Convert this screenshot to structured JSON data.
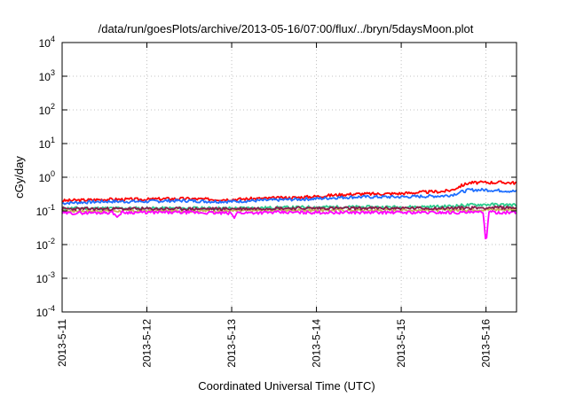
{
  "chart_data": {
    "type": "line",
    "title": "/data/run/goesPlots/archive/2013-05-16/07:00/flux/../bryn/5daysMoon.plot",
    "xlabel": "Coordinated Universal Time (UTC)",
    "ylabel": "cGy/day",
    "yscale": "log",
    "ylim": [
      0.0001,
      10000
    ],
    "xlim": [
      0,
      5.36
    ],
    "grid": true,
    "y_ticks": [
      {
        "value": 0.0001,
        "base": "10",
        "exp": "-4"
      },
      {
        "value": 0.001,
        "base": "10",
        "exp": "-3"
      },
      {
        "value": 0.01,
        "base": "10",
        "exp": "-2"
      },
      {
        "value": 0.1,
        "base": "10",
        "exp": "-1"
      },
      {
        "value": 1,
        "base": "10",
        "exp": "0"
      },
      {
        "value": 10,
        "base": "10",
        "exp": "1"
      },
      {
        "value": 100,
        "base": "10",
        "exp": "2"
      },
      {
        "value": 1000,
        "base": "10",
        "exp": "3"
      },
      {
        "value": 10000,
        "base": "10",
        "exp": "4"
      }
    ],
    "x_ticks": [
      {
        "value": 0,
        "label": "2013-5-11"
      },
      {
        "value": 1,
        "label": "2013-5-12"
      },
      {
        "value": 2,
        "label": "2013-5-13"
      },
      {
        "value": 3,
        "label": "2013-5-14"
      },
      {
        "value": 4,
        "label": "2013-5-15"
      },
      {
        "value": 5,
        "label": "2013-5-16"
      }
    ],
    "series": [
      {
        "color": "#ff0000",
        "points": [
          [
            0,
            0.2
          ],
          [
            0.25,
            0.21
          ],
          [
            0.5,
            0.22
          ],
          [
            0.75,
            0.22
          ],
          [
            1,
            0.22
          ],
          [
            1.25,
            0.23
          ],
          [
            1.5,
            0.23
          ],
          [
            1.75,
            0.22
          ],
          [
            2,
            0.22
          ],
          [
            2.25,
            0.23
          ],
          [
            2.5,
            0.24
          ],
          [
            2.75,
            0.25
          ],
          [
            3,
            0.27
          ],
          [
            3.25,
            0.3
          ],
          [
            3.5,
            0.32
          ],
          [
            3.75,
            0.32
          ],
          [
            4,
            0.33
          ],
          [
            4.25,
            0.36
          ],
          [
            4.5,
            0.38
          ],
          [
            4.6,
            0.42
          ],
          [
            4.7,
            0.55
          ],
          [
            4.8,
            0.68
          ],
          [
            5,
            0.7
          ],
          [
            5.2,
            0.7
          ],
          [
            5.36,
            0.68
          ]
        ]
      },
      {
        "color": "#1f6fff",
        "points": [
          [
            0,
            0.17
          ],
          [
            0.25,
            0.18
          ],
          [
            0.5,
            0.19
          ],
          [
            0.75,
            0.19
          ],
          [
            1,
            0.19
          ],
          [
            1.25,
            0.2
          ],
          [
            1.5,
            0.2
          ],
          [
            1.75,
            0.19
          ],
          [
            2,
            0.19
          ],
          [
            2.25,
            0.2
          ],
          [
            2.5,
            0.21
          ],
          [
            2.75,
            0.22
          ],
          [
            3,
            0.23
          ],
          [
            3.25,
            0.25
          ],
          [
            3.5,
            0.26
          ],
          [
            3.75,
            0.26
          ],
          [
            4,
            0.26
          ],
          [
            4.25,
            0.27
          ],
          [
            4.5,
            0.28
          ],
          [
            4.6,
            0.3
          ],
          [
            4.7,
            0.36
          ],
          [
            4.8,
            0.42
          ],
          [
            5,
            0.42
          ],
          [
            5.2,
            0.4
          ],
          [
            5.36,
            0.38
          ]
        ]
      },
      {
        "color": "#2ecc8e",
        "points": [
          [
            0,
            0.12
          ],
          [
            0.5,
            0.12
          ],
          [
            1,
            0.12
          ],
          [
            1.5,
            0.12
          ],
          [
            2,
            0.12
          ],
          [
            2.5,
            0.125
          ],
          [
            3,
            0.13
          ],
          [
            3.5,
            0.13
          ],
          [
            4,
            0.13
          ],
          [
            4.5,
            0.135
          ],
          [
            4.8,
            0.15
          ],
          [
            5,
            0.155
          ],
          [
            5.36,
            0.15
          ]
        ]
      },
      {
        "color": "#c8b45a",
        "points": [
          [
            0,
            0.1
          ],
          [
            0.5,
            0.1
          ],
          [
            1,
            0.1
          ],
          [
            1.5,
            0.1
          ],
          [
            2,
            0.1
          ],
          [
            2.5,
            0.105
          ],
          [
            3,
            0.105
          ],
          [
            3.5,
            0.105
          ],
          [
            4,
            0.105
          ],
          [
            4.5,
            0.105
          ],
          [
            5,
            0.11
          ],
          [
            5.36,
            0.11
          ]
        ]
      },
      {
        "color": "#8b1a4a",
        "points": [
          [
            0,
            0.115
          ],
          [
            0.5,
            0.115
          ],
          [
            1,
            0.115
          ],
          [
            1.5,
            0.115
          ],
          [
            2,
            0.115
          ],
          [
            2.5,
            0.12
          ],
          [
            3,
            0.12
          ],
          [
            3.5,
            0.12
          ],
          [
            4,
            0.12
          ],
          [
            4.5,
            0.12
          ],
          [
            5,
            0.125
          ],
          [
            5.36,
            0.125
          ]
        ]
      },
      {
        "color": "#ff00ff",
        "points": [
          [
            0,
            0.085
          ],
          [
            0.3,
            0.088
          ],
          [
            0.6,
            0.09
          ],
          [
            0.65,
            0.065
          ],
          [
            0.7,
            0.09
          ],
          [
            1,
            0.09
          ],
          [
            1.5,
            0.09
          ],
          [
            2,
            0.085
          ],
          [
            2.03,
            0.06
          ],
          [
            2.06,
            0.088
          ],
          [
            2.5,
            0.09
          ],
          [
            3,
            0.09
          ],
          [
            3.5,
            0.09
          ],
          [
            4,
            0.09
          ],
          [
            4.5,
            0.09
          ],
          [
            4.97,
            0.09
          ],
          [
            5,
            0.009
          ],
          [
            5.03,
            0.09
          ],
          [
            5.36,
            0.09
          ]
        ]
      }
    ]
  }
}
